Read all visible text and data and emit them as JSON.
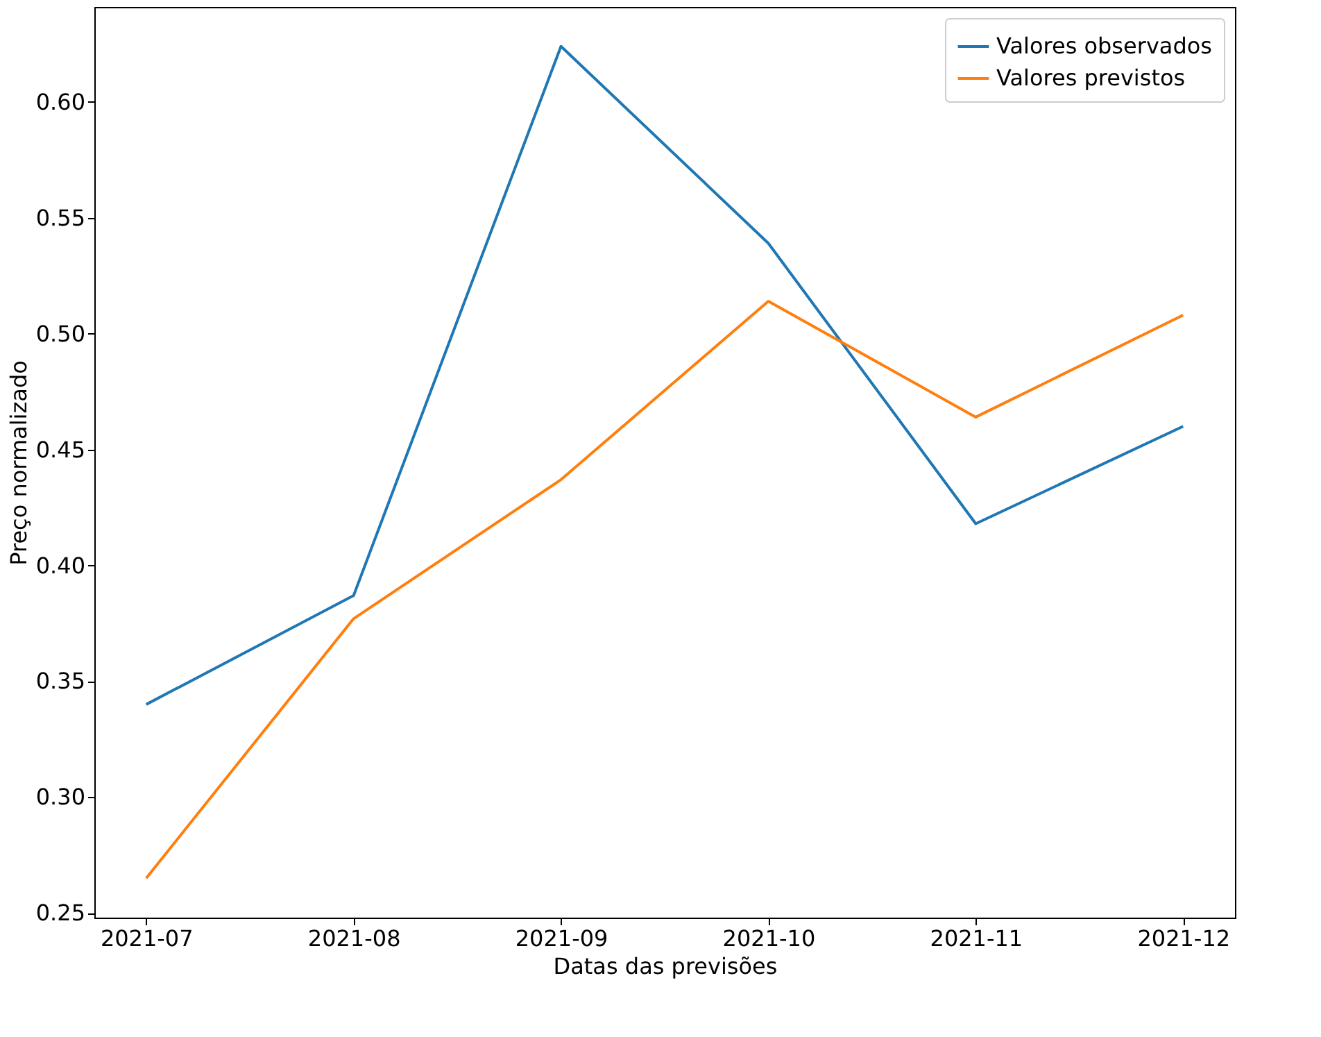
{
  "chart_data": {
    "type": "line",
    "xlabel": "Datas das previsões",
    "ylabel": "Preço normalizado",
    "categories": [
      "2021-07",
      "2021-08",
      "2021-09",
      "2021-10",
      "2021-11",
      "2021-12"
    ],
    "series": [
      {
        "name": "Valores observados",
        "color": "#1f77b4",
        "values": [
          0.34,
          0.387,
          0.624,
          0.539,
          0.418,
          0.46
        ]
      },
      {
        "name": "Valores previstos",
        "color": "#ff7f0e",
        "values": [
          0.265,
          0.377,
          0.437,
          0.514,
          0.464,
          0.508
        ]
      }
    ],
    "ylim": [
      0.248,
      0.641
    ],
    "yticks": [
      {
        "value": 0.25,
        "label": "0.25"
      },
      {
        "value": 0.3,
        "label": "0.30"
      },
      {
        "value": 0.35,
        "label": "0.35"
      },
      {
        "value": 0.4,
        "label": "0.40"
      },
      {
        "value": 0.45,
        "label": "0.45"
      },
      {
        "value": 0.5,
        "label": "0.50"
      },
      {
        "value": 0.55,
        "label": "0.55"
      },
      {
        "value": 0.6,
        "label": "0.60"
      }
    ],
    "grid": false,
    "legend": "top right",
    "marker": "none",
    "line_style": "solid"
  }
}
